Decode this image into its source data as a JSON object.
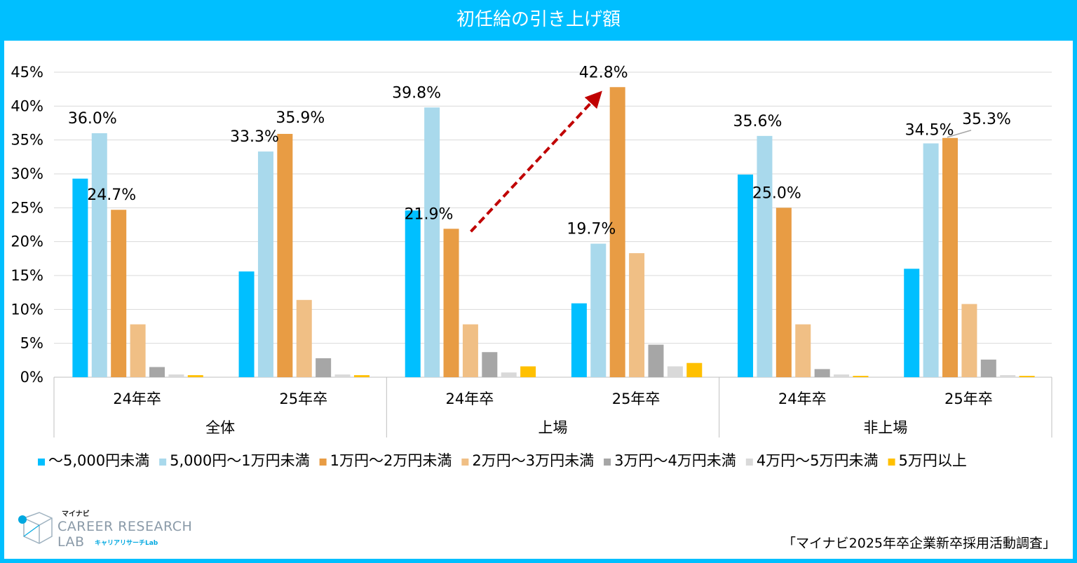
{
  "title": "初任給の引き上げ額",
  "source": "「マイナビ2025年卒企業新卒採用活動調査」",
  "logo": {
    "small": "マイナビ",
    "line1": "CAREER RESEARCH",
    "line2": "LAB",
    "sub": "キャリアリサーチLab",
    "colors": {
      "icon": "#00a8e0",
      "text": "#8a9aa8"
    }
  },
  "chart_data": {
    "type": "bar",
    "y_ticks": [
      "0%",
      "5%",
      "10%",
      "15%",
      "20%",
      "25%",
      "30%",
      "35%",
      "40%",
      "45%"
    ],
    "ylim": [
      0,
      45
    ],
    "grid": true,
    "legend_position": "bottom",
    "groups": [
      {
        "label": "全体",
        "categories": [
          {
            "label": "24年卒",
            "values": [
              29.3,
              36.0,
              24.7,
              7.8,
              1.5,
              0.4,
              0.3
            ]
          },
          {
            "label": "25年卒",
            "values": [
              15.6,
              33.3,
              35.9,
              11.4,
              2.8,
              0.4,
              0.3
            ]
          }
        ]
      },
      {
        "label": "上場",
        "categories": [
          {
            "label": "24年卒",
            "values": [
              24.6,
              39.8,
              21.9,
              7.8,
              3.7,
              0.7,
              1.6
            ]
          },
          {
            "label": "25年卒",
            "values": [
              10.9,
              19.7,
              42.8,
              18.3,
              4.8,
              1.6,
              2.1
            ]
          }
        ]
      },
      {
        "label": "非上場",
        "categories": [
          {
            "label": "24年卒",
            "values": [
              29.9,
              35.6,
              25.0,
              7.8,
              1.2,
              0.4,
              0.2
            ]
          },
          {
            "label": "25年卒",
            "values": [
              16.0,
              34.5,
              35.3,
              10.8,
              2.6,
              0.3,
              0.2
            ]
          }
        ]
      }
    ],
    "series": [
      {
        "name": "～5,000円未満",
        "color": "#00bfff"
      },
      {
        "name": "5,000円～1万円未満",
        "color": "#a9d9ec"
      },
      {
        "name": "1万円～2万円未満",
        "color": "#e89c44"
      },
      {
        "name": "2万円～3万円未満",
        "color": "#f0bf85"
      },
      {
        "name": "3万円～4万円未満",
        "color": "#a6a6a6"
      },
      {
        "name": "4万円～5万円未満",
        "color": "#d9d9d9"
      },
      {
        "name": "5万円以上",
        "color": "#ffc000"
      }
    ],
    "data_labels": [
      {
        "group": 0,
        "category": 0,
        "series": 1,
        "text": "36.0%"
      },
      {
        "group": 0,
        "category": 0,
        "series": 2,
        "text": "24.7%"
      },
      {
        "group": 0,
        "category": 1,
        "series": 1,
        "text": "33.3%"
      },
      {
        "group": 0,
        "category": 1,
        "series": 2,
        "text": "35.9%"
      },
      {
        "group": 1,
        "category": 0,
        "series": 1,
        "text": "39.8%"
      },
      {
        "group": 1,
        "category": 0,
        "series": 2,
        "text": "21.9%"
      },
      {
        "group": 1,
        "category": 1,
        "series": 1,
        "text": "19.7%"
      },
      {
        "group": 1,
        "category": 1,
        "series": 2,
        "text": "42.8%"
      },
      {
        "group": 2,
        "category": 0,
        "series": 1,
        "text": "35.6%"
      },
      {
        "group": 2,
        "category": 0,
        "series": 2,
        "text": "25.0%"
      },
      {
        "group": 2,
        "category": 1,
        "series": 1,
        "text": "34.5%"
      },
      {
        "group": 2,
        "category": 1,
        "series": 2,
        "text": "35.3%"
      }
    ],
    "annotation": {
      "type": "arrow",
      "from_bar": [
        1,
        0,
        2
      ],
      "to_bar": [
        1,
        1,
        2
      ],
      "color": "#c00000"
    }
  }
}
